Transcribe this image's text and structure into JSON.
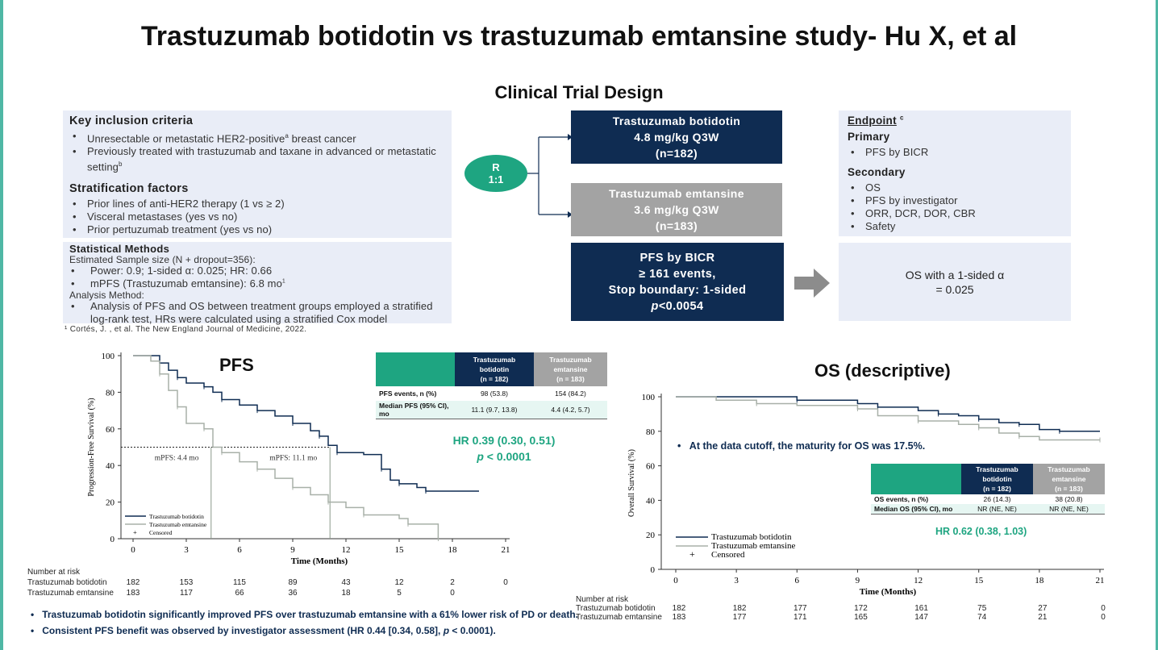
{
  "title": "Trastuzumab botidotin vs trastuzumab emtansine study- Hu X, et al",
  "design": {
    "heading": "Clinical Trial Design",
    "inclusion_heading": "Key inclusion criteria",
    "inclusion": [
      "Unresectable or metastatic HER2-positive",
      "a",
      " breast cancer",
      "Previously treated with trastuzumab and taxane in advanced or metastatic setting",
      "b"
    ],
    "strat_heading": "Stratification factors",
    "strat": [
      "Prior lines of anti-HER2 therapy (1 vs ≥ 2)",
      "Visceral metastases (yes vs no)",
      "Prior pertuzumab treatment (yes vs no)"
    ],
    "stat_heading": "Statistical Methods",
    "stat_sample": "Estimated Sample size (N + dropout=356):",
    "stat_items": [
      "Power: 0.9; 1-sided α: 0.025; HR: 0.66",
      "mPFS (Trastuzumab emtansine): 6.8 mo",
      "1"
    ],
    "analysis_label": "Analysis Method:",
    "analysis_item": "Analysis of PFS and OS between treatment groups employed a stratified log-rank test, HRs were calculated using a stratified Cox model",
    "footnote": "¹ Cortés, J. , et al. The New England Journal of Medicine, 2022.",
    "randomization": [
      "R",
      "1:1"
    ],
    "arm1": [
      "Trastuzumab botidotin",
      "4.8 mg/kg  Q3W",
      "(n=182)"
    ],
    "arm2": [
      "Trastuzumab emtansine",
      "3.6 mg/kg  Q3W",
      "(n=183)"
    ],
    "pfs_box": [
      "PFS by BICR",
      "≥ 161 events,",
      "Stop boundary: 1-sided",
      "p",
      "<0.0054"
    ],
    "os_box": [
      "OS with a 1-sided α",
      "= 0.025"
    ],
    "endpoint_heading": "Endpoint",
    "endpoint_sup": "c",
    "primary_label": "Primary",
    "primary": [
      "PFS by BICR"
    ],
    "secondary_label": "Secondary",
    "secondary": [
      "OS",
      "PFS by investigator",
      "ORR, DCR, DOR, CBR",
      "Safety"
    ]
  },
  "pfs_table": {
    "h1": [
      "Trastuzumab",
      "botidotin",
      "(n = 182)"
    ],
    "h2": [
      "Trastuzumab",
      "emtansine",
      "(n = 183)"
    ],
    "rows": [
      [
        "PFS events, n (%)",
        "98 (53.8)",
        "154 (84.2)"
      ],
      [
        "Median PFS (95% CI), mo",
        "11.1 (9.7, 13.8)",
        "4.4 (4.2, 5.7)"
      ]
    ],
    "hr": "HR 0.39 (0.30, 0.51)",
    "p": "p",
    "pval": " < 0.0001"
  },
  "os_table": {
    "h1": [
      "Trastuzumab",
      "botidotin",
      "(n = 182)"
    ],
    "h2": [
      "Trastuzumab",
      "emtansine",
      "(n = 183)"
    ],
    "rows": [
      [
        "OS events, n (%)",
        "26 (14.3)",
        "38 (20.8)"
      ],
      [
        "Median OS (95% CI), mo",
        "NR (NE, NE)",
        "NR (NE, NE)"
      ]
    ],
    "hr": "HR 0.62 (0.38, 1.03)",
    "maturity": "At the data cutoff, the maturity for OS was 17.5%."
  },
  "bullets": [
    "Trastuzumab botidotin significantly improved PFS over trastuzumab emtansine with a 61% lower risk of PD or death.",
    "Consistent PFS benefit was observed by investigator assessment (HR 0.44 [0.34, 0.58], ",
    "p",
    " < 0.0001)."
  ],
  "colors": {
    "navy": "#0f2c52",
    "gray": "#a3a3a3",
    "green": "#1ea581",
    "light": "#e9edf7"
  },
  "chart_data": [
    {
      "type": "line",
      "title": "PFS",
      "xlabel": "Time (Months)",
      "ylabel": "Progression-Free Survival (%)",
      "xlim": [
        0,
        21
      ],
      "ylim": [
        0,
        100
      ],
      "xticks": [
        0,
        3,
        6,
        9,
        12,
        15,
        18,
        21
      ],
      "yticks": [
        0,
        20,
        40,
        60,
        80,
        100
      ],
      "legend": [
        "Trastuzumab botidotin",
        "Trastuzumab emtansine",
        "Censored"
      ],
      "legend_position": "bottom-left",
      "annotations": [
        "mPFS: 4.4 mo",
        "mPFS: 11.1 mo"
      ],
      "medians": [
        4.4,
        11.1
      ],
      "series": [
        {
          "name": "Trastuzumab botidotin",
          "color": "#0f2c52",
          "points": [
            [
              0,
              100
            ],
            [
              1,
              100
            ],
            [
              1.5,
              96
            ],
            [
              2,
              92
            ],
            [
              2.5,
              88
            ],
            [
              3,
              85
            ],
            [
              4,
              83
            ],
            [
              4.5,
              80
            ],
            [
              5,
              76
            ],
            [
              6,
              73
            ],
            [
              7,
              70
            ],
            [
              8,
              67
            ],
            [
              9,
              63
            ],
            [
              10,
              59
            ],
            [
              10.5,
              56
            ],
            [
              11,
              51
            ],
            [
              11.5,
              47
            ],
            [
              13,
              46
            ],
            [
              14,
              38
            ],
            [
              14.5,
              32
            ],
            [
              15,
              30
            ],
            [
              16,
              28
            ],
            [
              16.5,
              26
            ],
            [
              19.5,
              26
            ]
          ]
        },
        {
          "name": "Trastuzumab emtansine",
          "color": "#a8b0a8",
          "points": [
            [
              0,
              100
            ],
            [
              1,
              97
            ],
            [
              1.5,
              90
            ],
            [
              2,
              81
            ],
            [
              2.5,
              72
            ],
            [
              3,
              63
            ],
            [
              4,
              60
            ],
            [
              4.5,
              50
            ],
            [
              5,
              47
            ],
            [
              6,
              42
            ],
            [
              7,
              38
            ],
            [
              8,
              33
            ],
            [
              9,
              28
            ],
            [
              10,
              24
            ],
            [
              11,
              20
            ],
            [
              12,
              17
            ],
            [
              13,
              13
            ],
            [
              15,
              11
            ],
            [
              15.5,
              8
            ],
            [
              17,
              8
            ],
            [
              17.2,
              0
            ]
          ]
        }
      ],
      "risk_label": "Number at risk",
      "risk": [
        {
          "name": "Trastuzumab botidotin",
          "values": [
            "182",
            "153",
            "115",
            "89",
            "43",
            "12",
            "2",
            "0"
          ]
        },
        {
          "name": "Trastuzumab emtansine",
          "values": [
            "183",
            "117",
            "66",
            "36",
            "18",
            "5",
            "0"
          ]
        }
      ]
    },
    {
      "type": "line",
      "title": "OS (descriptive)",
      "xlabel": "Time (Months)",
      "ylabel": "Overall Survival (%)",
      "xlim": [
        0,
        21
      ],
      "ylim": [
        0,
        100
      ],
      "xticks": [
        0,
        3,
        6,
        9,
        12,
        15,
        18,
        21
      ],
      "yticks": [
        0,
        20,
        40,
        60,
        80,
        100
      ],
      "legend": [
        "Trastuzumab botidotin",
        "Trastuzumab emtansine",
        "Censored"
      ],
      "legend_position": "bottom-left",
      "series": [
        {
          "name": "Trastuzumab botidotin",
          "color": "#0f2c52",
          "points": [
            [
              0,
              100
            ],
            [
              3,
              100
            ],
            [
              6,
              98
            ],
            [
              9,
              96
            ],
            [
              10,
              94
            ],
            [
              12,
              92
            ],
            [
              13,
              90
            ],
            [
              14,
              89
            ],
            [
              15,
              87
            ],
            [
              16,
              85
            ],
            [
              17,
              84
            ],
            [
              18,
              81
            ],
            [
              19,
              80
            ],
            [
              21,
              80
            ]
          ]
        },
        {
          "name": "Trastuzumab emtansine",
          "color": "#a8b0a8",
          "points": [
            [
              0,
              100
            ],
            [
              2,
              98
            ],
            [
              4,
              96
            ],
            [
              6,
              95
            ],
            [
              9,
              93
            ],
            [
              10,
              89
            ],
            [
              12,
              86
            ],
            [
              14,
              84
            ],
            [
              15,
              82
            ],
            [
              16,
              79
            ],
            [
              17,
              77
            ],
            [
              18,
              75
            ],
            [
              21,
              75
            ]
          ]
        }
      ],
      "risk_label": "Number at risk",
      "risk": [
        {
          "name": "Trastuzumab botidotin",
          "values": [
            "182",
            "182",
            "177",
            "172",
            "161",
            "75",
            "27",
            "0"
          ]
        },
        {
          "name": "Trastuzumab emtansine",
          "values": [
            "183",
            "177",
            "171",
            "165",
            "147",
            "74",
            "21",
            "0"
          ]
        }
      ]
    }
  ]
}
